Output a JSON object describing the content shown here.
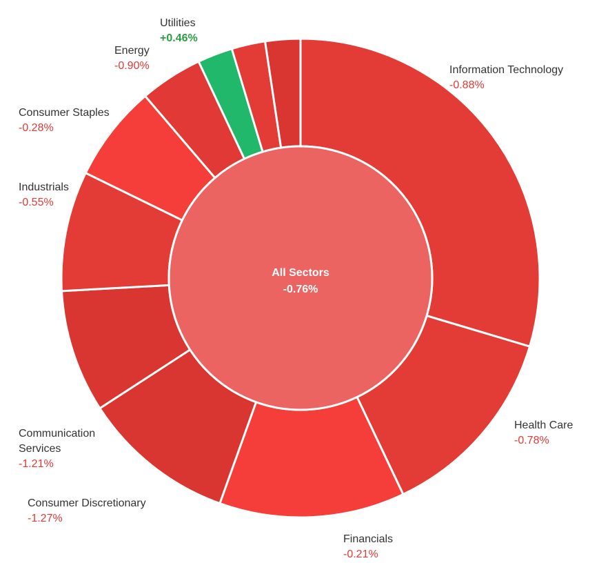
{
  "chart_data": {
    "type": "pie",
    "subtype": "donut",
    "center": {
      "label": "All Sectors",
      "value": "-0.76%"
    },
    "series": [
      {
        "name": "Information Technology",
        "change": "-0.88%",
        "weight": 30.0,
        "color": "#e33b36"
      },
      {
        "name": "Health Care",
        "change": "-0.78%",
        "weight": 13.5,
        "color": "#e33b36"
      },
      {
        "name": "Financials",
        "change": "-0.21%",
        "weight": 12.7,
        "color": "#f53e39"
      },
      {
        "name": "Consumer Discretionary",
        "change": "-1.27%",
        "weight": 10.5,
        "color": "#d93632"
      },
      {
        "name": "Communication Services",
        "change": "-1.21%",
        "weight": 8.4,
        "color": "#d93632"
      },
      {
        "name": "Industrials",
        "change": "-0.55%",
        "weight": 8.2,
        "color": "#e33b36"
      },
      {
        "name": "Consumer Staples",
        "change": "-0.28%",
        "weight": 6.6,
        "color": "#f53e39"
      },
      {
        "name": "Energy",
        "change": "-0.90%",
        "weight": 4.3,
        "color": "#e03936"
      },
      {
        "name": "Utilities",
        "change": "+0.46%",
        "weight": 2.4,
        "color": "#22b86b"
      },
      {
        "name": "",
        "change": "",
        "weight": 2.3,
        "color": "#e33b36"
      },
      {
        "name": "",
        "change": "",
        "weight": 2.4,
        "color": "#d93632"
      }
    ],
    "center_color": "#ec6461"
  }
}
